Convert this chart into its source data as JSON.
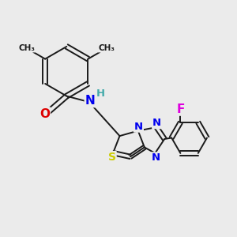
{
  "bg_color": "#ebebeb",
  "bond_color": "#1a1a1a",
  "bond_lw": 1.4,
  "atom_colors": {
    "N": "#0000ee",
    "O": "#dd0000",
    "S": "#cccc00",
    "F": "#dd00dd",
    "H": "#44aaaa",
    "C": "#1a1a1a"
  },
  "fig_size": [
    3.0,
    3.0
  ],
  "dpi": 100,
  "xlim": [
    0,
    10
  ],
  "ylim": [
    0,
    10
  ]
}
